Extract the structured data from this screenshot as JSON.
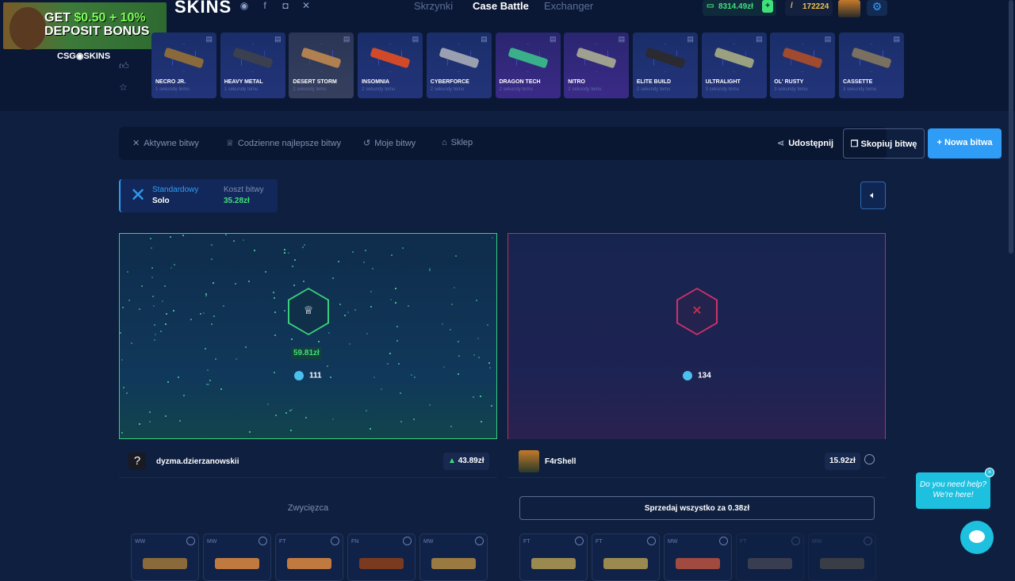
{
  "promo": {
    "line1a": "GET ",
    "line1b": "$0.50 + 10%",
    "line2": "DEPOSIT BONUS",
    "brand": "CSG◉SKINS"
  },
  "header": {
    "logo": "SKINS",
    "nav": [
      "Skrzynki",
      "Case Battle",
      "Exchanger"
    ],
    "active_nav": "Case Battle",
    "balance": "8314.49zł",
    "coins": "172224",
    "social": [
      "discord",
      "facebook",
      "instagram",
      "x"
    ]
  },
  "cases": [
    {
      "name": "NECRO JR.",
      "time": "1 sekundę temu",
      "style": "blue",
      "gun": "#8a6a3a"
    },
    {
      "name": "HEAVY METAL",
      "time": "1 sekundę temu",
      "style": "blue",
      "gun": "#3a4050"
    },
    {
      "name": "DESERT STORM",
      "time": "2 sekundy temu",
      "style": "gray",
      "gun": "#b08050"
    },
    {
      "name": "INSOMNIA",
      "time": "2 sekundy temu",
      "style": "blue",
      "gun": "#d04a2a"
    },
    {
      "name": "CYBERFORCE",
      "time": "2 sekundy temu",
      "style": "blue",
      "gun": "#9aa0b0"
    },
    {
      "name": "DRAGON TECH",
      "time": "2 sekundy temu",
      "style": "purple",
      "gun": "#3ab08a"
    },
    {
      "name": "NITRO",
      "time": "2 sekundy temu",
      "style": "purple",
      "gun": "#a0a090"
    },
    {
      "name": "ELITE BUILD",
      "time": "2 sekundy temu",
      "style": "blue",
      "gun": "#2a2a30"
    },
    {
      "name": "ULTRALIGHT",
      "time": "3 sekundy temu",
      "style": "blue",
      "gun": "#9aa080"
    },
    {
      "name": "OL' RUSTY",
      "time": "3 sekundy temu",
      "style": "blue",
      "gun": "#a04a30"
    },
    {
      "name": "CASSETTE",
      "time": "3 sekundy temu",
      "style": "blue",
      "gun": "#7a7060"
    }
  ],
  "tabs": {
    "items": [
      "Aktywne bitwy",
      "Codzienne najlepsze bitwy",
      "Moje bitwy",
      "Sklep"
    ],
    "share": "Udostępnij",
    "copy": "Skopiuj bitwę",
    "new": "Nowa bitwa"
  },
  "mode": {
    "type": "Standardowy",
    "variant": "Solo",
    "cost_label": "Koszt bitwy",
    "cost": "35.28zł"
  },
  "players": [
    {
      "name": "dyzma.dzierzanowskii",
      "result": "winner",
      "won": "59.81zł",
      "tickets": "111",
      "total": "43.89zł",
      "status": "Zwycięzca",
      "items": [
        {
          "c": "WW",
          "g": "#8a6a3a"
        },
        {
          "c": "MW",
          "g": "#c07a40"
        },
        {
          "c": "FT",
          "g": "#c07a40"
        },
        {
          "c": "FN",
          "g": "#7a3a20"
        },
        {
          "c": "MW",
          "g": "#9a7a40"
        }
      ]
    },
    {
      "name": "F4rShell",
      "result": "loser",
      "tickets": "134",
      "total": "15.92zł",
      "sell": "Sprzedaj wszystko za 0.38zł",
      "items": [
        {
          "c": "FT",
          "g": "#9a8a50"
        },
        {
          "c": "FT",
          "g": "#9a8a50"
        },
        {
          "c": "MW",
          "g": "#a04a40"
        },
        {
          "c": "FT",
          "g": "#7a6a6a"
        },
        {
          "c": "MW",
          "g": "#7a6a50"
        }
      ]
    }
  ],
  "colors": {
    "accent": "#2f9cf5",
    "win": "#38d07a",
    "lose": "#c0304a"
  },
  "help": {
    "line1": "Do you need help?",
    "line2": "We're here!"
  }
}
